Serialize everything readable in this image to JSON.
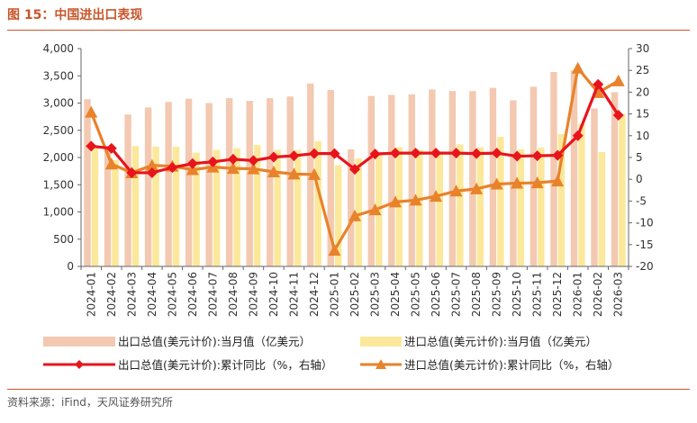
{
  "figure": {
    "title": "图 15：中国进出口表现",
    "source": "资料来源：iFind，天风证券研究所"
  },
  "colors": {
    "export_bar": "#f3c9b1",
    "import_bar": "#fbe89a",
    "export_line": "#e8141c",
    "import_line": "#e8822b",
    "accent": "#c8552a"
  },
  "chart_data": {
    "type": "bar",
    "categories": [
      "2024-01",
      "2024-02",
      "2024-03",
      "2024-04",
      "2024-05",
      "2024-06",
      "2024-07",
      "2024-08",
      "2024-09",
      "2024-10",
      "2024-11",
      "2024-12",
      "2025-01",
      "2025-02",
      "2025-03",
      "2025-04",
      "2025-05",
      "2025-06",
      "2025-07",
      "2025-08",
      "2025-09",
      "2025-10",
      "2025-11",
      "2025-12",
      "2026-01",
      "2026-02",
      "2026-03"
    ],
    "ylim": [
      0,
      4000
    ],
    "yticks": [
      0,
      500,
      1000,
      1500,
      2000,
      2500,
      3000,
      3500,
      4000
    ],
    "y2lim": [
      -20,
      30
    ],
    "y2ticks": [
      -20,
      -15,
      -10,
      -5,
      0,
      5,
      10,
      15,
      20,
      25,
      30
    ],
    "legend_position": "bottom",
    "series": [
      {
        "name": "出口总值(美元计价):当月值（亿美元）",
        "kind": "bar",
        "axis": "left",
        "values": [
          3070,
          2210,
          2790,
          2920,
          3020,
          3080,
          3000,
          3090,
          3040,
          3090,
          3120,
          3360,
          3240,
          2150,
          3130,
          3150,
          3160,
          3250,
          3220,
          3220,
          3280,
          3050,
          3300,
          3570,
          3600,
          2900,
          3200
        ]
      },
      {
        "name": "进口总值(美元计价):当月值（亿美元）",
        "kind": "bar",
        "axis": "left",
        "values": [
          2230,
          1950,
          2210,
          2200,
          2200,
          2090,
          2140,
          2170,
          2230,
          2140,
          2140,
          2300,
          1860,
          1980,
          2100,
          2190,
          2140,
          2110,
          2240,
          2190,
          2380,
          2150,
          2180,
          2430,
          2620,
          2100,
          2800
        ]
      },
      {
        "name": "出口总值(美元计价):累计同比（%，右轴）",
        "kind": "line",
        "axis": "right",
        "marker": "diamond",
        "values": [
          7.6,
          7.1,
          1.5,
          1.5,
          2.7,
          3.6,
          4.0,
          4.6,
          4.3,
          5.1,
          5.4,
          5.9,
          5.9,
          2.3,
          5.8,
          6.0,
          6.0,
          6.0,
          6.0,
          5.9,
          6.0,
          5.3,
          5.4,
          5.5,
          10.0,
          21.8,
          14.7
        ]
      },
      {
        "name": "进口总值(美元计价):累计同比（%，右轴）",
        "kind": "line",
        "axis": "right",
        "marker": "triangle",
        "values": [
          15.4,
          3.5,
          1.5,
          3.2,
          3.0,
          2.2,
          2.8,
          2.5,
          2.4,
          1.7,
          1.2,
          1.1,
          -16.3,
          -8.4,
          -7.0,
          -5.2,
          -4.8,
          -3.9,
          -2.7,
          -2.2,
          -1.1,
          -0.9,
          -0.8,
          -0.4,
          25.5,
          19.9,
          22.6
        ]
      }
    ]
  }
}
